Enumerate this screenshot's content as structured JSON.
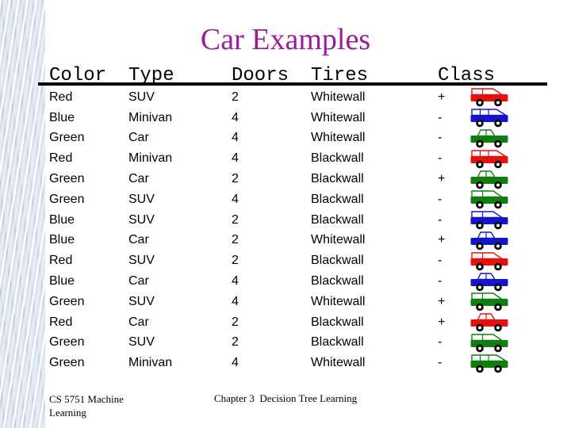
{
  "title": "Car Examples",
  "title_color": "#9B1B99",
  "table": {
    "headers": {
      "color": "Color",
      "type": "Type",
      "doors": "Doors",
      "tires": "Tires",
      "class": "Class"
    },
    "rows": [
      {
        "color": "Red",
        "type": "SUV",
        "doors": "2",
        "tires": "Whitewall",
        "class": "+"
      },
      {
        "color": "Blue",
        "type": "Minivan",
        "doors": "4",
        "tires": "Whitewall",
        "class": "-"
      },
      {
        "color": "Green",
        "type": "Car",
        "doors": "4",
        "tires": "Whitewall",
        "class": "-"
      },
      {
        "color": "Red",
        "type": "Minivan",
        "doors": "4",
        "tires": "Blackwall",
        "class": "-"
      },
      {
        "color": "Green",
        "type": "Car",
        "doors": "2",
        "tires": "Blackwall",
        "class": "+"
      },
      {
        "color": "Green",
        "type": "SUV",
        "doors": "4",
        "tires": "Blackwall",
        "class": "-"
      },
      {
        "color": "Blue",
        "type": "SUV",
        "doors": "2",
        "tires": "Blackwall",
        "class": "-"
      },
      {
        "color": "Blue",
        "type": "Car",
        "doors": "2",
        "tires": "Whitewall",
        "class": "+"
      },
      {
        "color": "Red",
        "type": "SUV",
        "doors": "2",
        "tires": "Blackwall",
        "class": "-"
      },
      {
        "color": "Blue",
        "type": "Car",
        "doors": "4",
        "tires": "Blackwall",
        "class": "-"
      },
      {
        "color": "Green",
        "type": "SUV",
        "doors": "4",
        "tires": "Whitewall",
        "class": "+"
      },
      {
        "color": "Red",
        "type": "Car",
        "doors": "2",
        "tires": "Blackwall",
        "class": "+"
      },
      {
        "color": "Green",
        "type": "SUV",
        "doors": "2",
        "tires": "Blackwall",
        "class": "-"
      },
      {
        "color": "Green",
        "type": "Minivan",
        "doors": "4",
        "tires": "Whitewall",
        "class": "-"
      }
    ]
  },
  "icon_colors": {
    "Red": "#E8100C",
    "Blue": "#1414CC",
    "Green": "#0E7E0E"
  },
  "footer": {
    "left": "CS 5751 Machine Learning",
    "center": "Chapter 3  Decision Tree Learning"
  }
}
